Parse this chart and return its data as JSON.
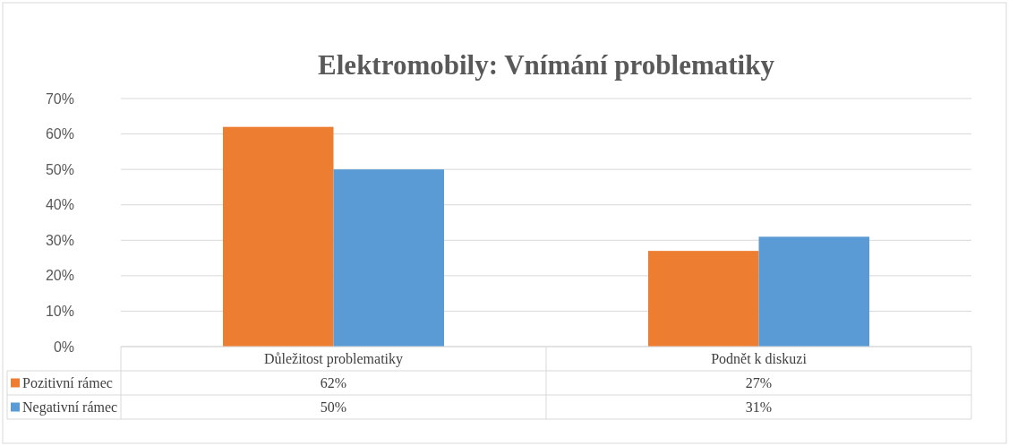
{
  "chart_data": {
    "type": "bar",
    "title": "Elektromobily: Vnímání problematiky",
    "categories": [
      "Důležitost problematiky",
      "Podnět k diskuzi"
    ],
    "series": [
      {
        "name": "Pozitivní rámec",
        "color": "#ed7d31",
        "values": [
          62,
          27
        ],
        "value_labels": [
          "62%",
          "27%"
        ]
      },
      {
        "name": "Negativní rámec",
        "color": "#5b9bd5",
        "values": [
          50,
          31
        ],
        "value_labels": [
          "50%",
          "31%"
        ]
      }
    ],
    "ylim": [
      0,
      70
    ],
    "yticks": [
      {
        "value": 0,
        "label": "0%"
      },
      {
        "value": 10,
        "label": "10%"
      },
      {
        "value": 20,
        "label": "20%"
      },
      {
        "value": 30,
        "label": "30%"
      },
      {
        "value": 40,
        "label": "40%"
      },
      {
        "value": 50,
        "label": "50%"
      },
      {
        "value": 60,
        "label": "60%"
      },
      {
        "value": 70,
        "label": "70%"
      }
    ],
    "grid": "y",
    "legend": "bottom"
  }
}
